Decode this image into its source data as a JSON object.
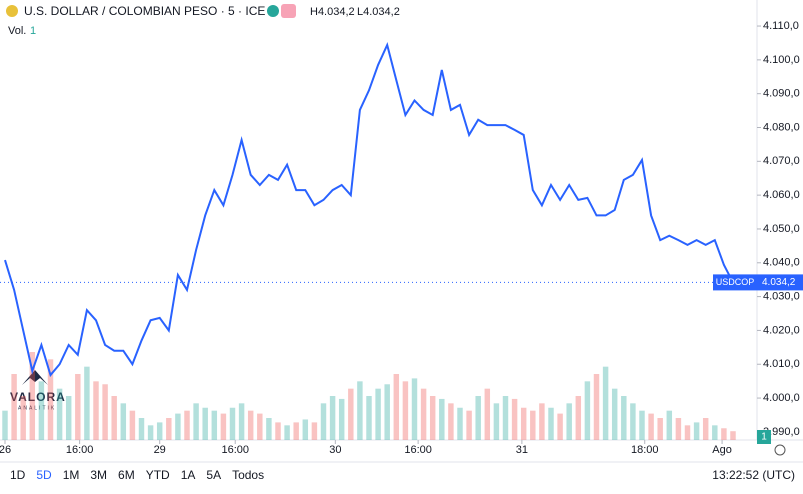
{
  "header": {
    "symbol": "U.S. DOLLAR / COLOMBIAN PESO · 5 · ICE",
    "high": "H4.034,2",
    "low": "L4.034,2",
    "volume_label": "Vol.",
    "volume_value": "1"
  },
  "watermark": {
    "name": "VALORA",
    "sub": "ANALITIK"
  },
  "toolbar": {
    "ranges": [
      "1D",
      "5D",
      "1M",
      "3M",
      "6M",
      "YTD",
      "1A",
      "5A",
      "Todos"
    ],
    "clock": "13:22:52 (UTC)"
  },
  "chart_data": {
    "type": "line",
    "series": [
      {
        "name": "USDCOP",
        "color": "#2962ff",
        "values": [
          4040.8,
          4032,
          4020,
          4008,
          4015.7,
          4006.8,
          4010,
          4015.7,
          4012.8,
          4026,
          4023,
          4015.7,
          4014,
          4014,
          4010,
          4017,
          4023,
          4023.7,
          4020,
          4036.4,
          4032,
          4043.8,
          4054,
          4061.5,
          4057,
          4066,
          4076.3,
          4066,
          4063,
          4066,
          4064.5,
          4069,
          4061.5,
          4061.5,
          4057,
          4058.6,
          4061.5,
          4063,
          4060,
          4085.2,
          4091,
          4098.5,
          4104.4,
          4094,
          4083.7,
          4088,
          4085.2,
          4083.7,
          4097,
          4085.2,
          4086.7,
          4077.8,
          4082.3,
          4080.7,
          4080.7,
          4080.7,
          4079.3,
          4077.8,
          4061.5,
          4057,
          4063,
          4058.6,
          4063,
          4058.6,
          4059.2,
          4054,
          4054,
          4055.6,
          4064.5,
          4066,
          4070.4,
          4054,
          4046.7,
          4048,
          4046.7,
          4045.3,
          4046.7,
          4045.3,
          4046.7,
          4039.4,
          4034.2
        ]
      },
      {
        "name": "Vol.",
        "axis": "y2",
        "up_color": "#26a69a",
        "down_color": "#ef5350",
        "values": [
          20,
          45,
          30,
          60,
          40,
          55,
          35,
          30,
          45,
          50,
          40,
          38,
          30,
          25,
          20,
          15,
          10,
          12,
          15,
          18,
          20,
          25,
          22,
          20,
          18,
          22,
          25,
          20,
          18,
          15,
          12,
          10,
          12,
          14,
          12,
          25,
          30,
          28,
          35,
          40,
          30,
          35,
          38,
          45,
          40,
          42,
          35,
          30,
          28,
          25,
          22,
          20,
          30,
          35,
          25,
          30,
          28,
          22,
          20,
          25,
          22,
          18,
          25,
          30,
          40,
          45,
          50,
          35,
          30,
          25,
          20,
          18,
          15,
          20,
          15,
          10,
          12,
          15,
          10,
          8,
          6
        ]
      }
    ],
    "last_price": {
      "value": 4034.2,
      "label": "4.034,2"
    },
    "last_volume": "1",
    "xlim": [
      0,
      80
    ],
    "xticks": [
      {
        "value": 0,
        "label": "26"
      },
      {
        "value": 8.2,
        "label": "16:00"
      },
      {
        "value": 17,
        "label": "29"
      },
      {
        "value": 25.3,
        "label": "16:00"
      },
      {
        "value": 36.3,
        "label": "30"
      },
      {
        "value": 45.4,
        "label": "16:00"
      },
      {
        "value": 56.8,
        "label": "31"
      },
      {
        "value": 70.3,
        "label": "18:00"
      },
      {
        "value": 78.8,
        "label": "Ago"
      }
    ],
    "ylim": [
      3987.6,
      4117.7
    ],
    "yticks": [
      {
        "value": 3990,
        "label": "3.990,0"
      },
      {
        "value": 4000,
        "label": "4.000,0"
      },
      {
        "value": 4010,
        "label": "4.010,0"
      },
      {
        "value": 4020,
        "label": "4.020,0"
      },
      {
        "value": 4030,
        "label": "4.030,0"
      },
      {
        "value": 4040,
        "label": "4.040,0"
      },
      {
        "value": 4050,
        "label": "4.050,0"
      },
      {
        "value": 4060,
        "label": "4.060,0"
      },
      {
        "value": 4070,
        "label": "4.070,0"
      },
      {
        "value": 4080,
        "label": "4.080,0"
      },
      {
        "value": 4090,
        "label": "4.090,0"
      },
      {
        "value": 4100,
        "label": "4.100,0"
      },
      {
        "value": 4110,
        "label": "4.110,0"
      }
    ],
    "y2lim": [
      0,
      300
    ]
  }
}
